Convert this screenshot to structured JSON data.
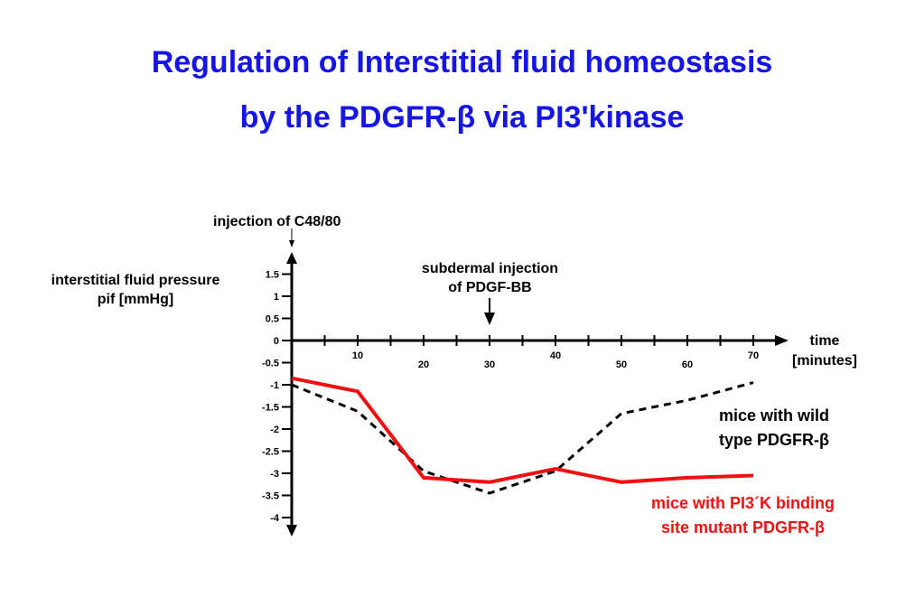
{
  "slide": {
    "title_line1": "Regulation of Interstitial fluid homeostasis",
    "title_line2": "by the PDGFR-β via PI3'kinase"
  },
  "annotations": {
    "injection_c48": "injection of C48/80",
    "pdgf_line1": "subdermal injection",
    "pdgf_line2": "of PDGF-BB"
  },
  "colors": {
    "title": "#1515e6",
    "mutant": "#ee1111",
    "wild_type": "#000000"
  },
  "chart_data": {
    "type": "line",
    "ylabel_line1": "interstitial fluid pressure",
    "ylabel_line2": "pif [mmHg]",
    "xlabel_line1": "time",
    "xlabel_line2": "[minutes]",
    "xlim": [
      0,
      70
    ],
    "ylim": [
      -4,
      1.5
    ],
    "x_ticks": [
      10,
      20,
      30,
      40,
      50,
      60,
      70
    ],
    "y_ticks": [
      1.5,
      1,
      0.5,
      0,
      -0.5,
      -1,
      -1.5,
      -2,
      -2.5,
      -3,
      -3.5,
      -4
    ],
    "series": [
      {
        "name": "mice with wild type PDGFR-β",
        "label_line1": "mice with wild",
        "label_line2": "type PDGFR-β",
        "style": "dashed",
        "color": "#000000",
        "x": [
          0,
          10,
          20,
          30,
          40,
          50,
          60,
          70
        ],
        "y": [
          -1.0,
          -1.6,
          -2.95,
          -3.45,
          -2.95,
          -1.65,
          -1.35,
          -0.95
        ]
      },
      {
        "name": "mice with PI3´K binding site mutant PDGFR-β",
        "label_line1": "mice with PI3´K binding",
        "label_line2": "site mutant PDGFR-β",
        "style": "solid",
        "color": "#ee1111",
        "x": [
          0,
          10,
          20,
          30,
          40,
          50,
          60,
          70
        ],
        "y": [
          -0.85,
          -1.15,
          -3.1,
          -3.2,
          -2.9,
          -3.2,
          -3.1,
          -3.05
        ]
      }
    ],
    "events": [
      {
        "x": 0,
        "label": "injection of C48/80"
      },
      {
        "x": 30,
        "label": "subdermal injection of PDGF-BB"
      }
    ]
  }
}
